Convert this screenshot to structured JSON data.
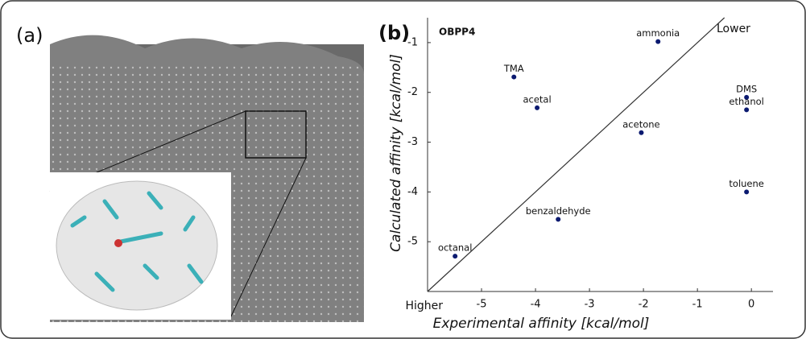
{
  "panel_a_label": "(a)",
  "chart_data": {
    "type": "scatter",
    "panel_label": "(b)",
    "title": "OBPP4",
    "corner_top": "Lower",
    "corner_bottom": "Higher",
    "xlabel": "Experimental affinity [kcal/mol]",
    "ylabel": "Calculated affinity [kcal/mol]",
    "categories": [
      "ammonia",
      "TMA",
      "acetal",
      "DMS",
      "ethanol",
      "acetone",
      "toluene",
      "benzaldehyde",
      "octanal"
    ],
    "x": [
      -1.73,
      -4.4,
      -3.97,
      -0.09,
      -0.09,
      -2.04,
      -0.09,
      -3.58,
      -5.49
    ],
    "values": [
      -0.98,
      -1.69,
      -2.31,
      -2.1,
      -2.35,
      -2.81,
      -4.0,
      -4.55,
      -5.29
    ],
    "color": "#0b1a70",
    "xlim": [
      -6,
      0.4
    ],
    "ylim": [
      -6,
      -0.5
    ],
    "xticks": [
      -5,
      -4,
      -3,
      -2,
      -1,
      0
    ],
    "yticks": [
      -1,
      -2,
      -3,
      -4,
      -5
    ]
  }
}
